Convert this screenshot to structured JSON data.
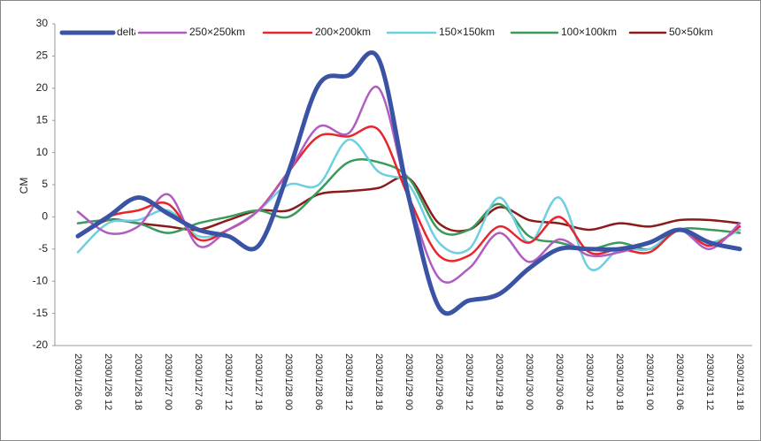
{
  "chart_data": {
    "type": "line",
    "y_label": "CM",
    "categories": [
      "2030/1/26 06",
      "2030/1/26 12",
      "2030/1/26 18",
      "2030/1/27 00",
      "2030/1/27 06",
      "2030/1/27 12",
      "2030/1/27 18",
      "2030/1/28 00",
      "2030/1/28 06",
      "2030/1/28 12",
      "2030/1/28 18",
      "2030/1/29 00",
      "2030/1/29 06",
      "2030/1/29 12",
      "2030/1/29 18",
      "2030/1/30 00",
      "2030/1/30 06",
      "2030/1/30 12",
      "2030/1/30 18",
      "2030/1/31 00",
      "2030/1/31 06",
      "2030/1/31 12",
      "2030/1/31 18"
    ],
    "series": [
      {
        "name": "delta",
        "color": "#3a53a4",
        "values": [
          -3,
          0,
          3,
          0.5,
          -2,
          -3,
          -4.5,
          7,
          20.5,
          22,
          24.5,
          3,
          -14,
          -13,
          -12,
          -8,
          -5,
          -5,
          -5,
          -4,
          -2,
          -4,
          -5
        ]
      },
      {
        "name": "250×250km",
        "color": "#b05cc0",
        "values": [
          0.8,
          -2.5,
          -1.5,
          3.5,
          -4.5,
          -2,
          1,
          7,
          14,
          13,
          20,
          3,
          -9.5,
          -8,
          -2.5,
          -7,
          -3.5,
          -6,
          -5.5,
          -4,
          -2,
          -5,
          -1
        ]
      },
      {
        "name": "200×200km",
        "color": "#e8252b",
        "values": [
          -3,
          0,
          1,
          2,
          -3.5,
          -2,
          1,
          7,
          12.5,
          12.5,
          13.5,
          3,
          -6,
          -6,
          -1.5,
          -4,
          0,
          -5.5,
          -5,
          -5.5,
          -2,
          -4.5,
          -1.5
        ]
      },
      {
        "name": "150×150km",
        "color": "#6dcfe0",
        "values": [
          -5.5,
          -1,
          -0.5,
          1,
          -3,
          -2,
          1,
          5,
          5,
          12,
          7,
          5,
          -4,
          -5,
          3,
          -4,
          3,
          -8,
          -5,
          -5,
          -2,
          -4,
          -2
        ]
      },
      {
        "name": "100×100km",
        "color": "#3a9a5c",
        "values": [
          -1,
          -0.5,
          -1,
          -2.5,
          -1,
          0,
          1,
          0,
          4,
          8.5,
          8.5,
          6,
          -2,
          -2,
          2,
          -3,
          -4,
          -5,
          -4,
          -5,
          -2,
          -2,
          -2.5
        ]
      },
      {
        "name": "50×50km",
        "color": "#8b1a1a",
        "values": [
          -3,
          -0.5,
          -1,
          -1.5,
          -2,
          -0.5,
          1,
          1,
          3.5,
          4,
          4.5,
          6,
          -1,
          -2,
          1.5,
          -0.5,
          -1,
          -2,
          -1,
          -1.5,
          -0.5,
          -0.5,
          -1
        ]
      }
    ],
    "ylim": [
      -20,
      30
    ],
    "yticks": [
      -20,
      -15,
      -10,
      -5,
      0,
      5,
      10,
      15,
      20,
      25,
      30
    ],
    "grid": false
  }
}
